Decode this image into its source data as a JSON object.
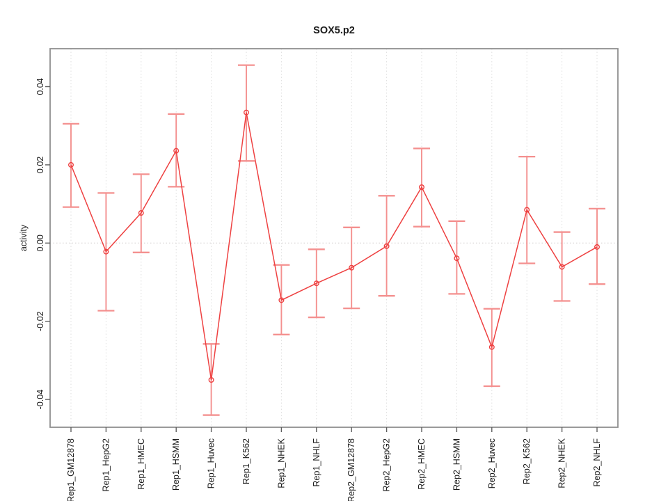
{
  "header": {
    "title": "SOX5.p2"
  },
  "colors": {
    "line": "#ee4141",
    "point": "#ee4141",
    "error_bar": "#f4908f",
    "grid": "#dedede",
    "zero_line": "#d0cccc",
    "axis_box": "#8f8f8f",
    "tick": "#5f5f5f",
    "text": "#1a1a1a",
    "background": "#ffffff"
  },
  "chart_data": {
    "type": "line",
    "title": "SOX5.p2",
    "xlabel": "",
    "ylabel": "activity",
    "legend": "none",
    "grid": "vertical-dotted",
    "zero_line": true,
    "point_marker": "open-circle",
    "categories": [
      "Rep1_GM12878",
      "Rep1_HepG2",
      "Rep1_HMEC",
      "Rep1_HSMM",
      "Rep1_Huvec",
      "Rep1_K562",
      "Rep1_NHEK",
      "Rep1_NHLF",
      "Rep2_GM12878",
      "Rep2_HepG2",
      "Rep2_HMEC",
      "Rep2_HSMM",
      "Rep2_Huvec",
      "Rep2_K562",
      "Rep2_NHEK",
      "Rep2_NHLF"
    ],
    "series": [
      {
        "name": "activity",
        "values": [
          0.02,
          -0.0022,
          0.0077,
          0.0236,
          -0.035,
          0.0334,
          -0.0146,
          -0.0103,
          -0.0063,
          -0.0008,
          0.0143,
          -0.0039,
          -0.0266,
          0.0085,
          -0.0061,
          -0.001
        ],
        "error_low": [
          0.0092,
          -0.0173,
          -0.0024,
          0.0144,
          -0.044,
          0.021,
          -0.0234,
          -0.019,
          -0.0167,
          -0.0135,
          0.0042,
          -0.013,
          -0.0366,
          -0.0052,
          -0.0148,
          -0.0105
        ],
        "error_high": [
          0.0305,
          0.0128,
          0.0176,
          0.033,
          -0.0258,
          0.0455,
          -0.0056,
          -0.0016,
          0.004,
          0.0121,
          0.0242,
          0.0056,
          -0.0168,
          0.0221,
          0.0028,
          0.0088
        ]
      }
    ],
    "yticks": [
      -0.04,
      -0.02,
      0,
      0.02,
      0.04
    ],
    "ytick_labels": [
      "-0.04",
      "-0.02",
      "0.00",
      "0.02",
      "0.04"
    ],
    "ylim": [
      -0.0471,
      0.0497
    ]
  }
}
